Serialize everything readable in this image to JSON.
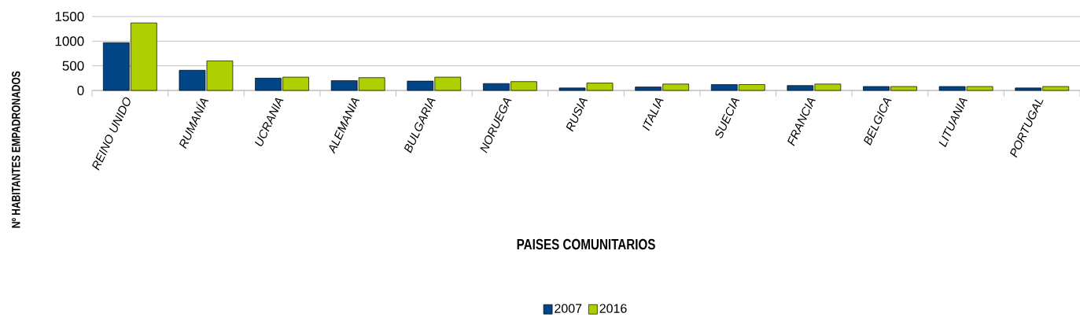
{
  "chart_data": {
    "type": "bar",
    "xlabel": "PAISES COMUNITARIOS",
    "ylabel": "Nº HABITANTES EMPADRONADOS",
    "categories": [
      "REINO UNIDO",
      "RUMANÍA",
      "UCRANIA",
      "ALEMANIA",
      "BULGARIA",
      "NORUEGA",
      "RUSIA",
      "ITALIA",
      "SUECIA",
      "FRANCIA",
      "BELGICA",
      "LITUANIA",
      "PORTUGAL"
    ],
    "series": [
      {
        "name": "2007",
        "color": "#004586",
        "values": [
          970,
          410,
          250,
          200,
          190,
          140,
          50,
          70,
          120,
          100,
          80,
          80,
          50
        ]
      },
      {
        "name": "2016",
        "color": "#aecf00",
        "values": [
          1370,
          600,
          270,
          260,
          270,
          180,
          150,
          130,
          120,
          130,
          80,
          80,
          80
        ]
      }
    ],
    "ylim": [
      0,
      1500
    ],
    "yticks": [
      0,
      500,
      1000,
      1500
    ],
    "grid": "y",
    "legend": "bottom"
  }
}
